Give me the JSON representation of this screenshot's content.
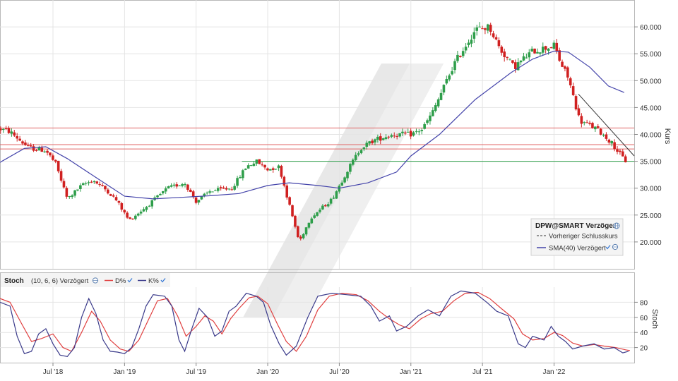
{
  "chart_data": [
    {
      "type": "candlestick",
      "title": "DPW@SMART Verzögert",
      "ylabel": "Kurs",
      "ylim": [
        15,
        65
      ],
      "yticks": [
        "60.000",
        "55.000",
        "50.000",
        "45.000",
        "40.000",
        "35.000",
        "30.000",
        "25.000",
        "20.000"
      ],
      "ytick_values": [
        60,
        55,
        50,
        45,
        40,
        35,
        30,
        25,
        20
      ],
      "x_range": [
        2018.13,
        2022.56
      ],
      "xticks": [
        "Jul '18",
        "Jan '19",
        "Jul '19",
        "Jan '20",
        "Jul '20",
        "Jan '21",
        "Jul '21",
        "Jan '22"
      ],
      "xtick_values": [
        2018.5,
        2019.0,
        2019.5,
        2020.0,
        2020.5,
        2021.0,
        2021.5,
        2022.0
      ],
      "price_path": [
        [
          2018.13,
          41.0
        ],
        [
          2018.2,
          40.5
        ],
        [
          2018.33,
          37.5
        ],
        [
          2018.45,
          37.0
        ],
        [
          2018.52,
          34.5
        ],
        [
          2018.6,
          28.0
        ],
        [
          2018.7,
          30.5
        ],
        [
          2018.78,
          31.5
        ],
        [
          2018.88,
          29.5
        ],
        [
          2018.95,
          27.5
        ],
        [
          2019.03,
          24.0
        ],
        [
          2019.15,
          26.5
        ],
        [
          2019.3,
          30.0
        ],
        [
          2019.42,
          31.0
        ],
        [
          2019.5,
          27.5
        ],
        [
          2019.6,
          29.5
        ],
        [
          2019.75,
          30.0
        ],
        [
          2019.85,
          34.0
        ],
        [
          2019.92,
          35.0
        ],
        [
          2020.0,
          33.5
        ],
        [
          2020.08,
          34.0
        ],
        [
          2020.12,
          30.0
        ],
        [
          2020.22,
          20.0
        ],
        [
          2020.3,
          24.5
        ],
        [
          2020.45,
          28.0
        ],
        [
          2020.55,
          33.0
        ],
        [
          2020.65,
          37.5
        ],
        [
          2020.75,
          39.0
        ],
        [
          2020.87,
          40.0
        ],
        [
          2021.0,
          40.0
        ],
        [
          2021.08,
          41.0
        ],
        [
          2021.15,
          44.0
        ],
        [
          2021.3,
          53.0
        ],
        [
          2021.45,
          59.5
        ],
        [
          2021.55,
          60.0
        ],
        [
          2021.62,
          56.0
        ],
        [
          2021.72,
          52.5
        ],
        [
          2021.85,
          55.5
        ],
        [
          2022.0,
          56.5
        ],
        [
          2022.05,
          53.0
        ],
        [
          2022.1,
          50.5
        ],
        [
          2022.18,
          42.5
        ],
        [
          2022.3,
          41.0
        ],
        [
          2022.4,
          38.5
        ],
        [
          2022.47,
          36.0
        ],
        [
          2022.5,
          35.0
        ]
      ],
      "sma_path": [
        [
          2018.13,
          34.8
        ],
        [
          2018.3,
          37.4
        ],
        [
          2018.45,
          37.7
        ],
        [
          2018.6,
          35.5
        ],
        [
          2018.8,
          32.0
        ],
        [
          2019.0,
          28.5
        ],
        [
          2019.2,
          28.0
        ],
        [
          2019.4,
          28.3
        ],
        [
          2019.6,
          28.6
        ],
        [
          2019.8,
          29.0
        ],
        [
          2020.0,
          30.5
        ],
        [
          2020.15,
          31.0
        ],
        [
          2020.35,
          30.5
        ],
        [
          2020.5,
          30.0
        ],
        [
          2020.7,
          31.0
        ],
        [
          2020.9,
          33.0
        ],
        [
          2021.0,
          36.0
        ],
        [
          2021.2,
          40.0
        ],
        [
          2021.45,
          46.5
        ],
        [
          2021.7,
          51.5
        ],
        [
          2021.85,
          54.0
        ],
        [
          2022.0,
          55.5
        ],
        [
          2022.1,
          55.3
        ],
        [
          2022.25,
          52.5
        ],
        [
          2022.38,
          49.0
        ],
        [
          2022.49,
          47.8
        ]
      ],
      "horizontal_lines": [
        {
          "value": 41.2,
          "color": "#e06666"
        },
        {
          "value": 38.1,
          "color": "#e06666"
        },
        {
          "value": 37.3,
          "color": "#e06666"
        },
        {
          "value": 35.0,
          "color": "#2e9e4a",
          "from": 2019.82
        }
      ],
      "trend_line": {
        "from": [
          2022.17,
          47.5
        ],
        "to": [
          2022.56,
          36.0
        ]
      },
      "legend": {
        "title": "DPW@SMART Verzögert",
        "entries": [
          {
            "label": "Vorheriger Schlusskurs",
            "style": "dashed",
            "color": "#333333"
          },
          {
            "label": "SMA(40) Verzögert",
            "style": "solid",
            "color": "#4444aa"
          }
        ]
      }
    },
    {
      "type": "line",
      "title": "Stoch",
      "params": "(10, 6, 6) Verzögert",
      "ylabel": "Stoch",
      "ylim": [
        0,
        100
      ],
      "yticks": [
        "80",
        "60",
        "40",
        "20"
      ],
      "ytick_values": [
        80,
        60,
        40,
        20
      ],
      "x_range": [
        2018.13,
        2022.56
      ],
      "xticks": [
        "Jul '18",
        "Jan '19",
        "Jul '19",
        "Jan '20",
        "Jul '20",
        "Jan '21",
        "Jul '21",
        "Jan '22"
      ],
      "xtick_values": [
        2018.5,
        2019.0,
        2019.5,
        2020.0,
        2020.5,
        2021.0,
        2021.5,
        2022.0
      ],
      "series": [
        {
          "name": "K%",
          "color": "#3a3a8a",
          "points": [
            [
              2018.13,
              80
            ],
            [
              2018.2,
              75
            ],
            [
              2018.25,
              35
            ],
            [
              2018.3,
              12
            ],
            [
              2018.35,
              15
            ],
            [
              2018.4,
              38
            ],
            [
              2018.45,
              45
            ],
            [
              2018.5,
              25
            ],
            [
              2018.55,
              10
            ],
            [
              2018.6,
              8
            ],
            [
              2018.65,
              20
            ],
            [
              2018.7,
              60
            ],
            [
              2018.75,
              85
            ],
            [
              2018.8,
              65
            ],
            [
              2018.85,
              30
            ],
            [
              2018.9,
              15
            ],
            [
              2018.95,
              14
            ],
            [
              2019.0,
              12
            ],
            [
              2019.05,
              20
            ],
            [
              2019.1,
              45
            ],
            [
              2019.15,
              75
            ],
            [
              2019.2,
              90
            ],
            [
              2019.28,
              88
            ],
            [
              2019.33,
              75
            ],
            [
              2019.38,
              30
            ],
            [
              2019.42,
              15
            ],
            [
              2019.47,
              45
            ],
            [
              2019.52,
              72
            ],
            [
              2019.58,
              60
            ],
            [
              2019.63,
              35
            ],
            [
              2019.68,
              42
            ],
            [
              2019.73,
              68
            ],
            [
              2019.78,
              75
            ],
            [
              2019.85,
              92
            ],
            [
              2019.92,
              88
            ],
            [
              2019.97,
              80
            ],
            [
              2020.02,
              50
            ],
            [
              2020.08,
              25
            ],
            [
              2020.13,
              10
            ],
            [
              2020.2,
              22
            ],
            [
              2020.28,
              60
            ],
            [
              2020.35,
              88
            ],
            [
              2020.45,
              92
            ],
            [
              2020.55,
              90
            ],
            [
              2020.65,
              88
            ],
            [
              2020.72,
              75
            ],
            [
              2020.78,
              55
            ],
            [
              2020.85,
              62
            ],
            [
              2020.9,
              42
            ],
            [
              2020.97,
              48
            ],
            [
              2021.05,
              62
            ],
            [
              2021.12,
              70
            ],
            [
              2021.2,
              62
            ],
            [
              2021.28,
              88
            ],
            [
              2021.35,
              95
            ],
            [
              2021.45,
              92
            ],
            [
              2021.53,
              80
            ],
            [
              2021.6,
              68
            ],
            [
              2021.68,
              62
            ],
            [
              2021.75,
              25
            ],
            [
              2021.8,
              20
            ],
            [
              2021.85,
              35
            ],
            [
              2021.93,
              30
            ],
            [
              2021.98,
              48
            ],
            [
              2022.03,
              35
            ],
            [
              2022.08,
              28
            ],
            [
              2022.13,
              18
            ],
            [
              2022.2,
              22
            ],
            [
              2022.28,
              25
            ],
            [
              2022.35,
              18
            ],
            [
              2022.42,
              20
            ],
            [
              2022.48,
              13
            ],
            [
              2022.52,
              15
            ]
          ]
        },
        {
          "name": "D%",
          "color": "#e04040",
          "points": [
            [
              2018.13,
              85
            ],
            [
              2018.2,
              80
            ],
            [
              2018.28,
              52
            ],
            [
              2018.35,
              28
            ],
            [
              2018.42,
              32
            ],
            [
              2018.5,
              38
            ],
            [
              2018.57,
              20
            ],
            [
              2018.63,
              15
            ],
            [
              2018.7,
              40
            ],
            [
              2018.77,
              68
            ],
            [
              2018.83,
              55
            ],
            [
              2018.9,
              30
            ],
            [
              2018.97,
              18
            ],
            [
              2019.03,
              15
            ],
            [
              2019.1,
              30
            ],
            [
              2019.17,
              58
            ],
            [
              2019.23,
              82
            ],
            [
              2019.3,
              85
            ],
            [
              2019.37,
              62
            ],
            [
              2019.43,
              35
            ],
            [
              2019.5,
              48
            ],
            [
              2019.56,
              62
            ],
            [
              2019.62,
              55
            ],
            [
              2019.68,
              38
            ],
            [
              2019.74,
              58
            ],
            [
              2019.8,
              72
            ],
            [
              2019.87,
              86
            ],
            [
              2019.93,
              88
            ],
            [
              2020.0,
              78
            ],
            [
              2020.07,
              50
            ],
            [
              2020.13,
              28
            ],
            [
              2020.2,
              15
            ],
            [
              2020.27,
              35
            ],
            [
              2020.35,
              70
            ],
            [
              2020.43,
              88
            ],
            [
              2020.52,
              92
            ],
            [
              2020.62,
              90
            ],
            [
              2020.7,
              82
            ],
            [
              2020.78,
              68
            ],
            [
              2020.85,
              58
            ],
            [
              2020.92,
              50
            ],
            [
              2020.99,
              45
            ],
            [
              2021.07,
              58
            ],
            [
              2021.14,
              65
            ],
            [
              2021.22,
              68
            ],
            [
              2021.3,
              82
            ],
            [
              2021.38,
              92
            ],
            [
              2021.47,
              93
            ],
            [
              2021.55,
              85
            ],
            [
              2021.63,
              72
            ],
            [
              2021.72,
              58
            ],
            [
              2021.78,
              38
            ],
            [
              2021.85,
              30
            ],
            [
              2021.93,
              32
            ],
            [
              2022.0,
              40
            ],
            [
              2022.06,
              36
            ],
            [
              2022.13,
              26
            ],
            [
              2022.2,
              22
            ],
            [
              2022.28,
              24
            ],
            [
              2022.35,
              22
            ],
            [
              2022.43,
              20
            ],
            [
              2022.5,
              17
            ],
            [
              2022.53,
              16
            ]
          ]
        }
      ]
    }
  ],
  "panels": {
    "price": {
      "legend_title": "DPW@SMART Verzögert",
      "legend_prev_close": "Vorheriger Schlusskurs",
      "legend_sma": "SMA(40) Verzögert",
      "axis_label": "Kurs"
    },
    "stoch": {
      "label": "Stoch",
      "params": "(10, 6, 6) Verzögert",
      "d_label": "D%",
      "k_label": "K%",
      "axis_label": "Stoch"
    }
  },
  "colors": {
    "up": "#2e9e4a",
    "down": "#d02020",
    "grid": "#e4e4e4",
    "frame": "#b8b8b8",
    "watermark": "#e6e6e6"
  },
  "icons": [
    "globe-icon",
    "check-icon"
  ]
}
